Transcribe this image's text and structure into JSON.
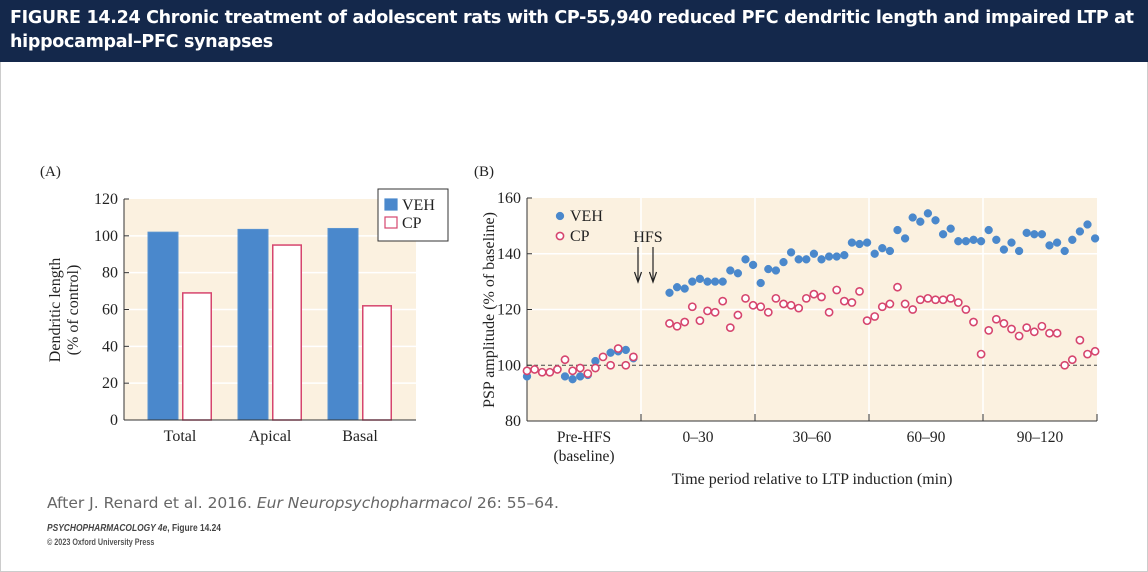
{
  "header": {
    "title": "FIGURE 14.24  Chronic treatment of adolescent rats with CP-55,940 reduced PFC dendritic length and impaired LTP at hippocampal–PFC synapses"
  },
  "credit": {
    "prefix": "After J. Renard et al. 2016. ",
    "journal": "Eur Neuropsychopharmacol",
    "suffix": " 26: 55–64."
  },
  "book": {
    "title": "PSYCHOPHARMACOLOGY 4e",
    "figure": ", Figure 14.24",
    "copyright": "© 2023 Oxford University Press"
  },
  "colors": {
    "veh": "#4a88cc",
    "cp": "#d6456e",
    "plot_bg": "#fbf1e0",
    "header_bg": "#14284b"
  },
  "chart_data": [
    {
      "panel": "(A)",
      "type": "bar",
      "categories": [
        "Total",
        "Apical",
        "Basal"
      ],
      "series": [
        {
          "name": "VEH",
          "values": [
            102,
            103.5,
            104
          ]
        },
        {
          "name": "CP",
          "values": [
            69,
            95,
            62
          ]
        }
      ],
      "ylabel": [
        "Dendritic length",
        "(% of control)"
      ],
      "ylim": [
        0,
        120
      ],
      "yticks": [
        0,
        20,
        40,
        60,
        80,
        100,
        120
      ],
      "legend": "top-right",
      "grid": true
    },
    {
      "panel": "(B)",
      "type": "scatter",
      "ylabel": "PSP amplitude (% of baseline)",
      "xlabel": "Time period relative to LTP induction (min)",
      "ylim": [
        80,
        160
      ],
      "yticks": [
        80,
        100,
        120,
        140,
        160
      ],
      "xlim": [
        -30,
        120
      ],
      "xtick_labels": [
        [
          "Pre-HFS",
          "(baseline)"
        ],
        [
          "0–30"
        ],
        [
          "30–60"
        ],
        [
          "60–90"
        ],
        [
          "90–120"
        ]
      ],
      "annotation": "HFS",
      "baseline": 100,
      "legend": "top-left",
      "series": [
        {
          "name": "VEH",
          "x": [
            -30,
            -20,
            -18,
            -16,
            -14,
            -12,
            -8,
            -6,
            -4,
            -2,
            7.5,
            9.5,
            11.5,
            13.5,
            15.5,
            17.5,
            19.5,
            21.5,
            23.5,
            25.5,
            27.5,
            29.5,
            31.5,
            33.5,
            35.5,
            37.5,
            39.5,
            41.5,
            43.5,
            45.5,
            47.5,
            49.5,
            51.5,
            53.5,
            55.5,
            57.5,
            59.5,
            61.5,
            63.5,
            65.5,
            67.5,
            69.5,
            71.5,
            73.5,
            75.5,
            77.5,
            79.5,
            81.5,
            83.5,
            85.5,
            87.5,
            89.5,
            91.5,
            93.5,
            95.5,
            97.5,
            99.5,
            101.5,
            103.5,
            105.5,
            107.5,
            109.5,
            111.5,
            113.5,
            115.5,
            117.5,
            119.5
          ],
          "y": [
            96,
            96,
            95,
            96,
            96.5,
            101.5,
            104.5,
            105,
            105.5,
            102.5,
            126,
            128,
            127.5,
            130,
            131,
            130,
            130,
            130,
            134,
            133,
            138,
            136,
            129.5,
            134.5,
            134,
            137,
            140.5,
            138,
            138,
            140,
            138,
            139,
            139,
            139.5,
            144,
            143.5,
            144,
            140,
            142,
            141,
            148.5,
            145.5,
            153,
            151.5,
            154.5,
            152,
            147,
            149,
            144.5,
            144.5,
            145,
            144.5,
            148.5,
            145,
            141.5,
            144,
            141,
            147.5,
            147,
            147,
            143,
            144,
            141,
            145,
            148,
            150.5,
            145.5
          ]
        },
        {
          "name": "CP",
          "x": [
            -30,
            -28,
            -26,
            -24,
            -22,
            -20,
            -18,
            -16,
            -14,
            -12,
            -10,
            -8,
            -6,
            -4,
            -2,
            7.5,
            9.5,
            11.5,
            13.5,
            15.5,
            17.5,
            19.5,
            21.5,
            23.5,
            25.5,
            27.5,
            29.5,
            31.5,
            33.5,
            35.5,
            37.5,
            39.5,
            41.5,
            43.5,
            45.5,
            47.5,
            49.5,
            51.5,
            53.5,
            55.5,
            57.5,
            59.5,
            61.5,
            63.5,
            65.5,
            67.5,
            69.5,
            71.5,
            73.5,
            75.5,
            77.5,
            79.5,
            81.5,
            83.5,
            85.5,
            87.5,
            89.5,
            91.5,
            93.5,
            95.5,
            97.5,
            99.5,
            101.5,
            103.5,
            105.5,
            107.5,
            109.5,
            111.5,
            113.5,
            115.5,
            117.5,
            119.5
          ],
          "y": [
            98,
            98.5,
            97.5,
            97.5,
            98.5,
            102,
            98,
            99,
            97,
            99,
            103,
            100,
            106,
            100,
            103,
            115,
            114,
            115.5,
            121,
            116,
            119.5,
            119,
            123,
            113.5,
            118,
            124,
            121.5,
            121,
            119,
            124,
            122,
            121.5,
            120.5,
            124,
            125.5,
            124.5,
            119,
            127,
            123,
            122.5,
            126.5,
            116,
            117.5,
            121,
            122,
            128,
            122,
            120,
            123.5,
            124,
            123.5,
            123.5,
            124,
            122.5,
            120,
            115.5,
            104,
            112.5,
            116.5,
            115,
            113,
            110.5,
            113.5,
            112,
            114,
            111.5,
            111.5,
            100,
            102,
            109,
            104,
            105
          ]
        }
      ]
    }
  ]
}
